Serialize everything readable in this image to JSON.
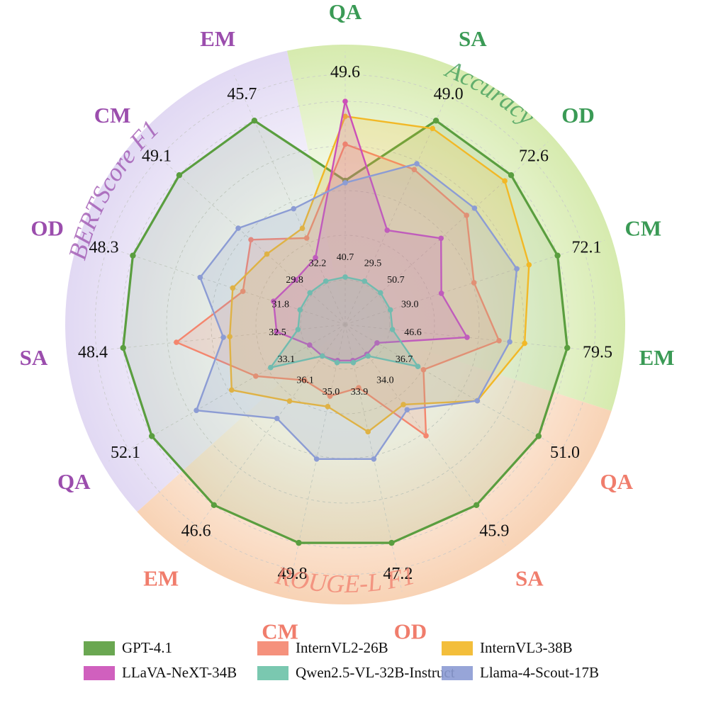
{
  "chart_data": {
    "type": "radar",
    "grid": true,
    "legend_position": "bottom",
    "colors": {
      "accuracy": "#3a9a55",
      "bertscore": "#9b4dad",
      "rouge": "#f07d6c",
      "grid": "#bbbbbb"
    },
    "groups": [
      {
        "key": "accuracy",
        "title": "Accuracy",
        "color": "#3a9a55",
        "bg": "#cfe7a0"
      },
      {
        "key": "rouge",
        "title": "ROUGE-L F1",
        "color": "#f07d6c",
        "bg": "#f7cba8"
      },
      {
        "key": "bertscore",
        "title": "BERTScore F1",
        "color": "#9b4dad",
        "bg": "#dcd2f1"
      }
    ],
    "axes": [
      {
        "label": "QA",
        "group": "accuracy",
        "max_label": "49.6",
        "min_label": "40.7"
      },
      {
        "label": "SA",
        "group": "accuracy",
        "max_label": "49.0",
        "min_label": "29.5"
      },
      {
        "label": "OD",
        "group": "accuracy",
        "max_label": "72.6",
        "min_label": "50.7"
      },
      {
        "label": "CM",
        "group": "accuracy",
        "max_label": "72.1",
        "min_label": "39.0"
      },
      {
        "label": "EM",
        "group": "accuracy",
        "max_label": "79.5",
        "min_label": "46.6"
      },
      {
        "label": "QA",
        "group": "rouge",
        "max_label": "51.0",
        "min_label": "36.7"
      },
      {
        "label": "SA",
        "group": "rouge",
        "max_label": "45.9",
        "min_label": "34.0"
      },
      {
        "label": "OD",
        "group": "rouge",
        "max_label": "47.2",
        "min_label": "33.9"
      },
      {
        "label": "CM",
        "group": "rouge",
        "max_label": "49.8",
        "min_label": "35.0"
      },
      {
        "label": "EM",
        "group": "rouge",
        "max_label": "46.6",
        "min_label": "36.1"
      },
      {
        "label": "QA",
        "group": "bertscore",
        "max_label": "52.1",
        "min_label": "33.1"
      },
      {
        "label": "SA",
        "group": "bertscore",
        "max_label": "48.4",
        "min_label": "32.5"
      },
      {
        "label": "OD",
        "group": "bertscore",
        "max_label": "48.3",
        "min_label": "31.8"
      },
      {
        "label": "CM",
        "group": "bertscore",
        "max_label": "49.1",
        "min_label": "29.8"
      },
      {
        "label": "EM",
        "group": "bertscore",
        "max_label": "45.7",
        "min_label": "32.2"
      }
    ],
    "scale_note": "each axis is scaled from the bottom to the top of its range; shown are relative positions 0-1",
    "series": [
      {
        "name": "GPT-4.1",
        "color": "#5a9e3f",
        "values": [
          0.63,
          1.0,
          1.0,
          1.0,
          1.0,
          1.0,
          1.0,
          1.0,
          1.0,
          1.0,
          1.0,
          1.0,
          1.0,
          1.0,
          1.0
        ]
      },
      {
        "name": "InternVL2-26B",
        "color": "#f4866e",
        "values": [
          0.8,
          0.75,
          0.72,
          0.59,
          0.68,
          0.38,
          0.6,
          0.26,
          0.3,
          0.28,
          0.44,
          0.75,
          0.46,
          0.55,
          0.4
        ]
      },
      {
        "name": "InternVL3-38B",
        "color": "#f2b826",
        "values": [
          0.93,
          0.96,
          0.96,
          0.86,
          0.8,
          0.67,
          0.42,
          0.47,
          0.35,
          0.4,
          0.57,
          0.5,
          0.51,
          0.45,
          0.45
        ]
      },
      {
        "name": "LLaVA-NeXT-34B",
        "color": "#cc4fb8",
        "values": [
          1.0,
          0.44,
          0.56,
          0.43,
          0.53,
          0.13,
          0.13,
          0.13,
          0.13,
          0.14,
          0.15,
          0.28,
          0.31,
          0.27,
          0.3
        ]
      },
      {
        "name": "Qwen2.5-VL-32B-Instruct",
        "color": "#6cc3a8",
        "values": [
          0.18,
          0.18,
          0.18,
          0.18,
          0.18,
          0.35,
          0.14,
          0.14,
          0.14,
          0.14,
          0.36,
          0.18,
          0.18,
          0.18,
          0.18
        ]
      },
      {
        "name": "Llama-4-Scout-17B",
        "color": "#8c9cd4",
        "values": [
          0.62,
          0.78,
          0.77,
          0.8,
          0.73,
          0.67,
          0.45,
          0.6,
          0.6,
          0.5,
          0.76,
          0.53,
          0.67,
          0.63,
          0.55
        ]
      }
    ]
  }
}
